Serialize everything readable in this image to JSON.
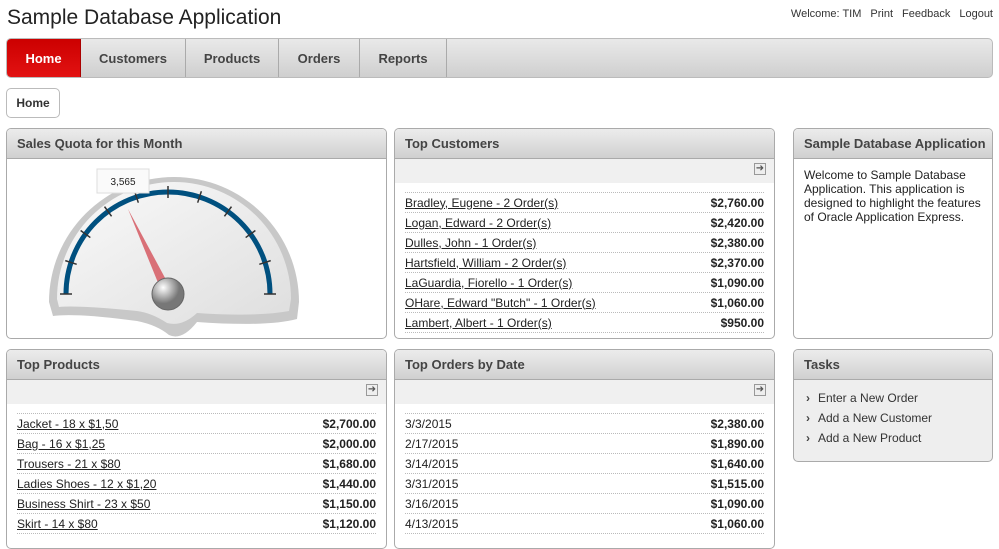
{
  "app": {
    "title": "Sample Database Application"
  },
  "nav_links": [
    {
      "label": "Welcome: TIM"
    },
    {
      "label": "Print"
    },
    {
      "label": "Feedback"
    },
    {
      "label": "Logout"
    }
  ],
  "tabs": [
    {
      "label": "Home",
      "active": true
    },
    {
      "label": "Customers"
    },
    {
      "label": "Products"
    },
    {
      "label": "Orders"
    },
    {
      "label": "Reports"
    }
  ],
  "breadcrumb": {
    "label": "Home"
  },
  "colors": {
    "accent": "#d90b0b",
    "gauge_arc": "#00507f",
    "needle": "#d97077"
  },
  "sales_quota": {
    "title": "Sales Quota for this Month",
    "value_label": "3,565",
    "needle_fraction": 0.36
  },
  "top_customers": {
    "title": "Top Customers",
    "icon": "export-arrow-icon",
    "rows": [
      {
        "name": "Bradley, Eugene - 2 Order(s)",
        "amount": "$2,760.00"
      },
      {
        "name": "Logan, Edward - 2 Order(s)",
        "amount": "$2,420.00"
      },
      {
        "name": "Dulles, John - 1 Order(s)",
        "amount": "$2,380.00"
      },
      {
        "name": "Hartsfield, William - 2 Order(s)",
        "amount": "$2,370.00"
      },
      {
        "name": "LaGuardia, Fiorello - 1 Order(s)",
        "amount": "$1,090.00"
      },
      {
        "name": "OHare, Edward \"Butch\" - 1 Order(s)",
        "amount": "$1,060.00"
      },
      {
        "name": "Lambert, Albert - 1 Order(s)",
        "amount": "$950.00"
      }
    ]
  },
  "about": {
    "title": "Sample Database Application",
    "text": "Welcome to Sample Database Application. This application is designed to highlight the features of Oracle Application Express."
  },
  "top_products": {
    "title": "Top Products",
    "icon": "export-arrow-icon",
    "rows": [
      {
        "name": "Jacket - 18 x $1,50",
        "amount": "$2,700.00"
      },
      {
        "name": "Bag - 16 x $1,25",
        "amount": "$2,000.00"
      },
      {
        "name": "Trousers - 21 x $80",
        "amount": "$1,680.00"
      },
      {
        "name": "Ladies Shoes - 12 x $1,20",
        "amount": "$1,440.00"
      },
      {
        "name": "Business Shirt - 23 x $50",
        "amount": "$1,150.00"
      },
      {
        "name": "Skirt - 14 x $80",
        "amount": "$1,120.00"
      }
    ]
  },
  "top_orders": {
    "title": "Top Orders by Date",
    "icon": "export-arrow-icon",
    "rows": [
      {
        "name": "3/3/2015",
        "amount": "$2,380.00"
      },
      {
        "name": "2/17/2015",
        "amount": "$1,890.00"
      },
      {
        "name": "3/14/2015",
        "amount": "$1,640.00"
      },
      {
        "name": "3/31/2015",
        "amount": "$1,515.00"
      },
      {
        "name": "3/16/2015",
        "amount": "$1,090.00"
      },
      {
        "name": "4/13/2015",
        "amount": "$1,060.00"
      }
    ]
  },
  "tasks": {
    "title": "Tasks",
    "items": [
      {
        "label": "Enter a New Order"
      },
      {
        "label": "Add a New Customer"
      },
      {
        "label": "Add a New Product"
      }
    ]
  }
}
